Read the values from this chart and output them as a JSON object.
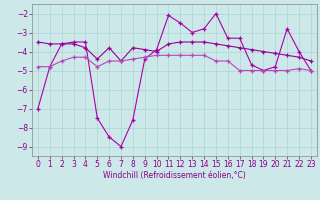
{
  "xlabel": "Windchill (Refroidissement éolien,°C)",
  "x": [
    0,
    1,
    2,
    3,
    4,
    5,
    6,
    7,
    8,
    9,
    10,
    11,
    12,
    13,
    14,
    15,
    16,
    17,
    18,
    19,
    20,
    21,
    22,
    23
  ],
  "line1": [
    -7.0,
    -4.8,
    -3.6,
    -3.5,
    -3.5,
    -7.5,
    -8.5,
    -9.0,
    -7.6,
    -4.4,
    -3.9,
    -2.1,
    -2.5,
    -3.0,
    -2.8,
    -2.0,
    -3.3,
    -3.3,
    -4.7,
    -5.0,
    -4.8,
    -2.8,
    -4.0,
    -5.0
  ],
  "line2": [
    -3.5,
    -3.6,
    -3.6,
    -3.6,
    -3.8,
    -4.4,
    -3.8,
    -4.5,
    -3.8,
    -3.9,
    -4.0,
    -3.6,
    -3.5,
    -3.5,
    -3.5,
    -3.6,
    -3.7,
    -3.8,
    -3.9,
    -4.0,
    -4.1,
    -4.2,
    -4.3,
    -4.5
  ],
  "line3": [
    -4.8,
    -4.8,
    -4.5,
    -4.3,
    -4.3,
    -4.8,
    -4.5,
    -4.5,
    -4.4,
    -4.3,
    -4.2,
    -4.2,
    -4.2,
    -4.2,
    -4.2,
    -4.5,
    -4.5,
    -5.0,
    -5.0,
    -5.0,
    -5.0,
    -5.0,
    -4.9,
    -5.0
  ],
  "bg_color": "#cce8e8",
  "grid_color": "#aad4d4",
  "line_color1": "#aa00aa",
  "line_color2": "#990099",
  "line_color3": "#bb44bb",
  "ylim": [
    -9.5,
    -1.5
  ],
  "xlim": [
    -0.5,
    23.5
  ],
  "yticks": [
    -2,
    -3,
    -4,
    -5,
    -6,
    -7,
    -8,
    -9
  ],
  "xticks": [
    0,
    1,
    2,
    3,
    4,
    5,
    6,
    7,
    8,
    9,
    10,
    11,
    12,
    13,
    14,
    15,
    16,
    17,
    18,
    19,
    20,
    21,
    22,
    23
  ],
  "tick_color": "#880088",
  "label_fontsize": 5.5,
  "tick_fontsize": 5.5
}
